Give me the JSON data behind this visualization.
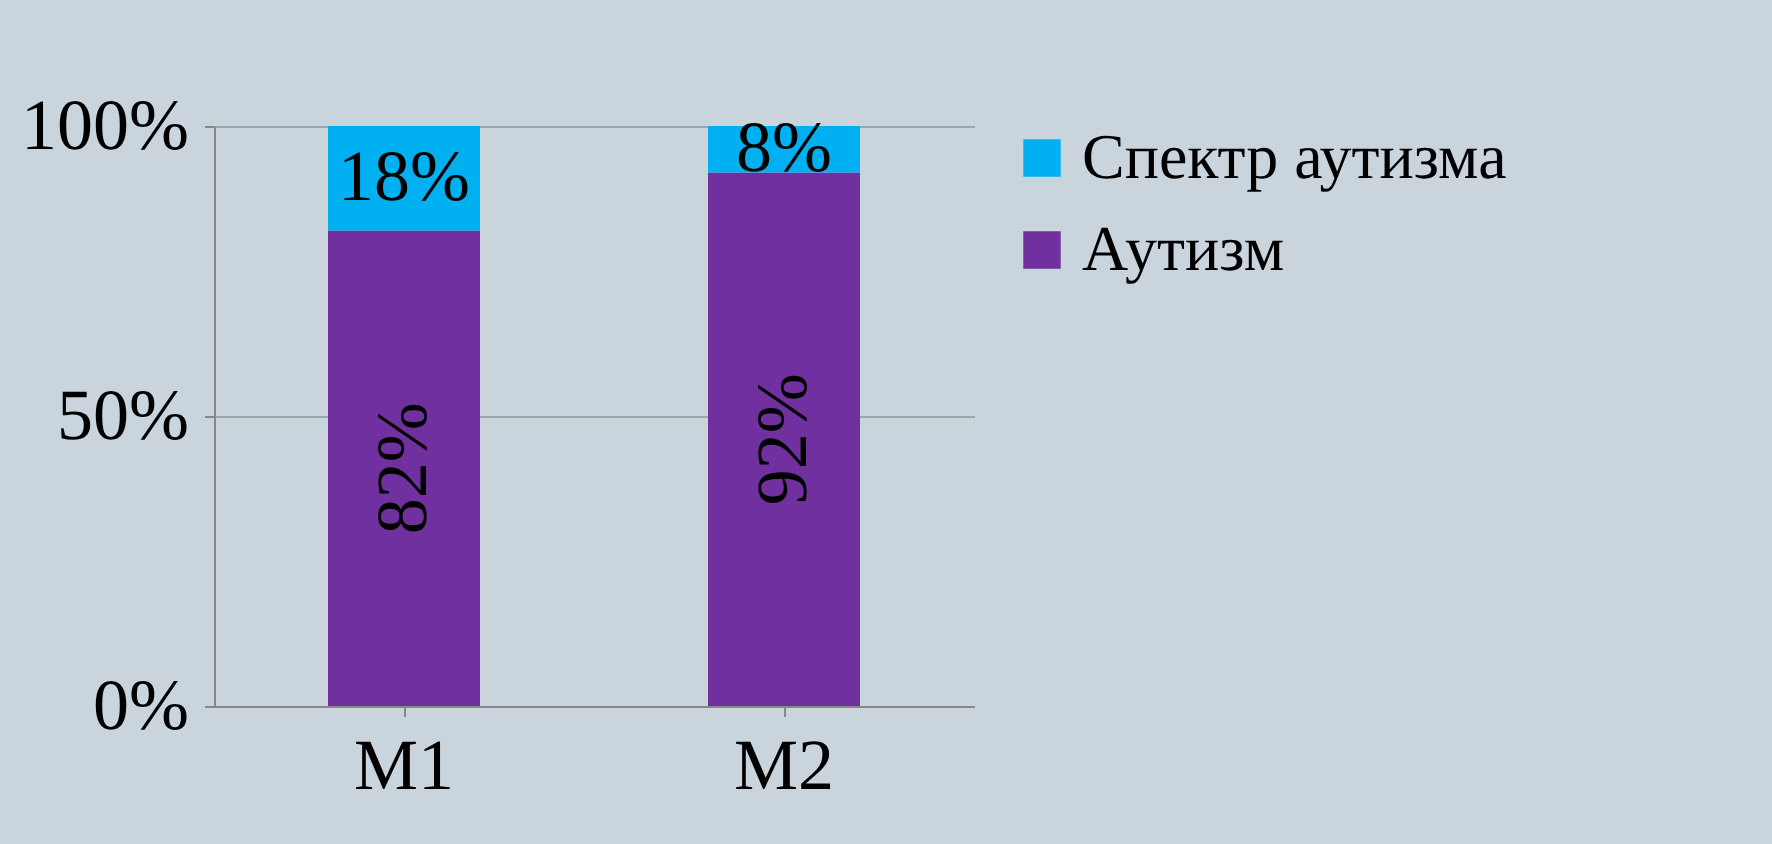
{
  "chart_data": {
    "type": "bar",
    "stacked": true,
    "categories": [
      "M1",
      "M2"
    ],
    "series": [
      {
        "name": "Аутизм",
        "color": "#7030a0",
        "values": [
          82,
          92
        ],
        "value_labels": [
          "82%",
          "92%"
        ]
      },
      {
        "name": "Спектр аутизма",
        "color": "#00b0f0",
        "values": [
          18,
          8
        ],
        "value_labels": [
          "18%",
          "8%"
        ]
      }
    ],
    "ylim": [
      0,
      100
    ],
    "yticks": [
      {
        "value": 0,
        "label": "0%"
      },
      {
        "value": 50,
        "label": "50%"
      },
      {
        "value": 100,
        "label": "100%"
      }
    ],
    "grid": "y",
    "legend": "right"
  }
}
